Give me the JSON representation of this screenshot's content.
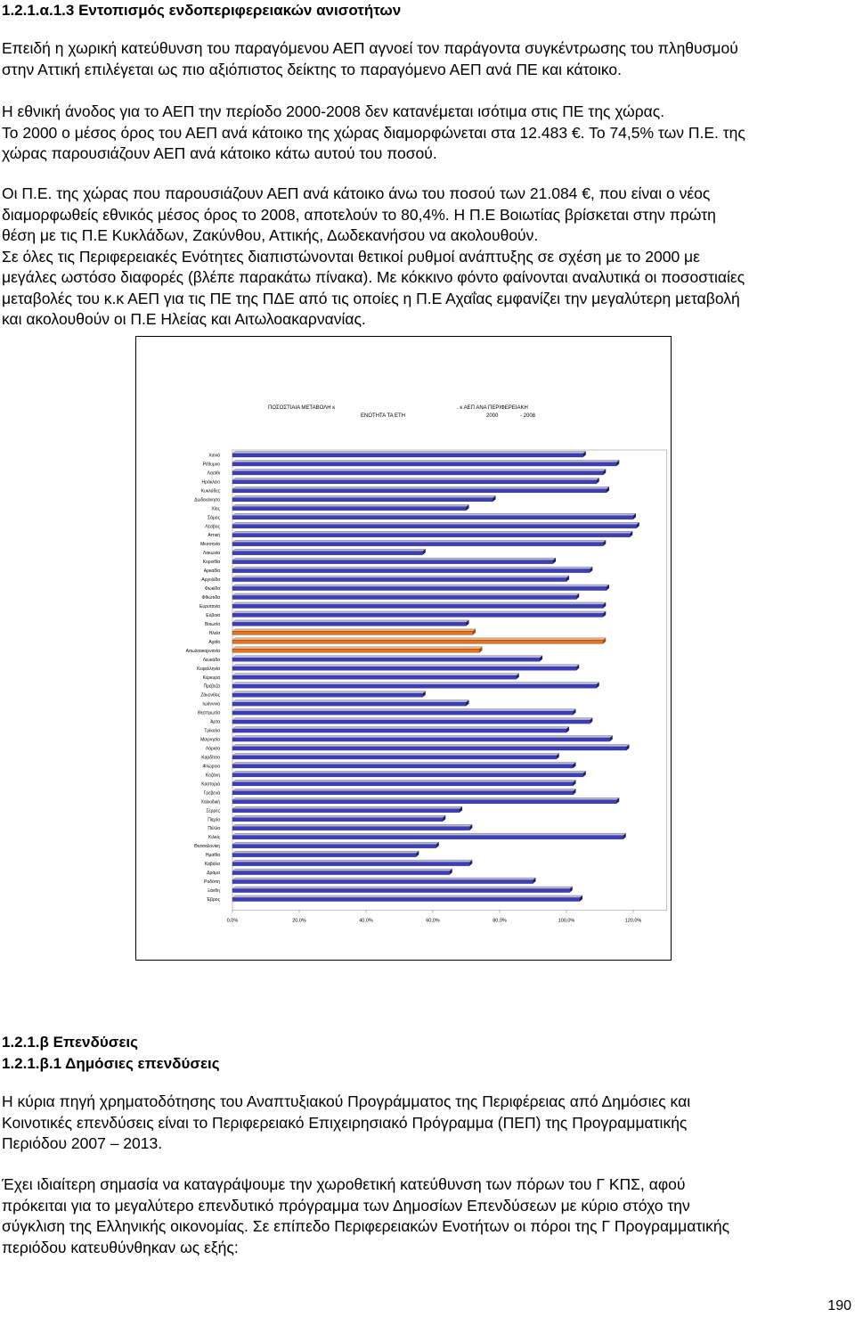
{
  "section_1": {
    "heading": "1.2.1.α.1.3 Εντοπισμός ενδοπεριφερειακών ανισοτήτων",
    "para_1": [
      "Επειδή η χωρική κατεύθυνση του παραγόμενου ΑΕΠ αγνοεί τον παράγοντα συγκέντρωσης του πληθυσμού",
      "στην Αττική επιλέγεται ως πιο αξιόπιστος δείκτης το παραγόμενο ΑΕΠ ανά ΠΕ και κάτοικο."
    ],
    "para_2": [
      "Η εθνική άνοδος για το ΑΕΠ την περίοδο 2000-2008 δεν κατανέμεται ισότιμα στις ΠΕ της χώρας.",
      "Το 2000 ο μέσος όρος του ΑΕΠ ανά κάτοικο της χώρας διαμορφώνεται στα 12.483 €. Το 74,5% των Π.Ε. της",
      "χώρας παρουσιάζουν ΑΕΠ ανά κάτοικο κάτω αυτού του ποσού."
    ],
    "para_3": [
      "Οι Π.Ε. της χώρας που παρουσιάζουν ΑΕΠ ανά κάτοικο άνω του ποσού των 21.084 €, που είναι ο νέος",
      "διαμορφωθείς εθνικός μέσος όρος το 2008, αποτελούν το 80,4%. Η Π.Ε Βοιωτίας βρίσκεται στην πρώτη",
      "θέση με τις Π.Ε Κυκλάδων, Ζακύνθου, Αττικής, Δωδεκανήσου να ακολουθούν.",
      "Σε όλες τις Περιφερειακές Ενότητες διαπιστώνονται θετικοί ρυθμοί ανάπτυξης σε σχέση με το 2000 με",
      "μεγάλες ωστόσο διαφορές (βλέπε παρακάτω πίνακα). Με κόκκινο φόντο φαίνονται αναλυτικά οι ποσοστιαίες",
      "μεταβολές του κ.κ ΑΕΠ για τις ΠΕ της ΠΔΕ από τις οποίες η Π.Ε Αχαΐας εμφανίζει την μεγαλύτερη μεταβολή",
      "και ακολουθούν οι Π.Ε Ηλείας και Αιτωλοακαρνανίας."
    ]
  },
  "chart_data": {
    "type": "bar",
    "orientation": "horizontal",
    "title_parts": [
      "ΠΟΣΟΣΤΙΑΙΑ ΜΕΤΑΒΟΛΗ κ",
      ". κ ΑΕΠ ΑΝΑ ΠΕΡΙΦΕΡΕΙΑΚΗ",
      "ΕΝΟΤΗΤΑ ΤΑ ΕΤΗ",
      "2000",
      "- 2008"
    ],
    "xlim": [
      0,
      130
    ],
    "x_ticks": [
      "0,0%",
      "20,0%",
      "40,0%",
      "60,0%",
      "80,0%",
      "100,0%",
      "120,0%"
    ],
    "x_tick_values": [
      0,
      20,
      40,
      60,
      80,
      100,
      120
    ],
    "bar_color": "#3d3dbf",
    "highlight_color": "#e8731a",
    "categories": [
      "Χανιά",
      "Ρέθυμνο",
      "Λασίθι",
      "Ηράκλειο",
      "Κυκλάδες",
      "Δωδεκάνησα",
      "Χίος",
      "Σάμος",
      "Λέσβος",
      "Αττική",
      "Μεσσηνία",
      "Λακωνία",
      "Κορινθία",
      "Αρκαδία",
      "Αργολίδα",
      "Φωκίδα",
      "Φθιώτιδα",
      "Ευρυτανία",
      "Εύβοια",
      "Βοιωτία",
      "Ηλεία",
      "Αχαΐα",
      "Αιτωλοακαρνανία",
      "Λευκάδα",
      "Κεφαλληνία",
      "Κέρκυρα",
      "Πρέβεζα",
      "Ζάκυνθος",
      "Ιωάννινα",
      "Θεσπρωτία",
      "Άρτα",
      "Τρίκαλα",
      "Μαγνησία",
      "Λάρισα",
      "Καρδίτσα",
      "Φλώρινα",
      "Κοζάνη",
      "Καστοριά",
      "Γρεβενά",
      "Χαλκιδική",
      "Σέρρες",
      "Πιερία",
      "Πέλλα",
      "Κιλκίς",
      "Θεσσαλονίκη",
      "Ημαθία",
      "Καβάλα",
      "Δράμα",
      "Ροδόπη",
      "Ξάνθη",
      "Έβρος"
    ],
    "values": [
      105,
      115,
      111,
      109,
      112,
      78,
      70,
      120,
      121,
      119,
      111,
      57,
      96,
      107,
      100,
      112,
      103,
      111,
      111,
      70,
      72,
      111,
      74,
      92,
      103,
      85,
      109,
      57,
      70,
      102,
      107,
      100,
      113,
      118,
      97,
      102,
      105,
      102,
      102,
      115,
      68,
      63,
      71,
      117,
      61,
      55,
      71,
      65,
      90,
      101,
      104
    ],
    "highlighted": [
      "Ηλεία",
      "Αχαΐα",
      "Αιτωλοακαρνανία"
    ]
  },
  "section_2": {
    "heading_1": "1.2.1.β Επενδύσεις",
    "heading_2": "1.2.1.β.1 Δημόσιες επενδύσεις",
    "para_1": [
      "Η κύρια πηγή χρηματοδότησης του Αναπτυξιακού Προγράμματος της Περιφέρειας από Δημόσιες και",
      "Κοινοτικές επενδύσεις είναι το Περιφερειακό Επιχειρησιακό Πρόγραμμα (ΠΕΠ) της Προγραμματικής",
      "Περιόδου 2007 – 2013."
    ],
    "para_2": [
      "Έχει ιδιαίτερη σημασία να καταγράψουμε την χωροθετική κατεύθυνση των πόρων του Γ ΚΠΣ, αφού",
      "πρόκειται για το μεγαλύτερο επενδυτικό πρόγραμμα των Δημοσίων Επενδύσεων με κύριο στόχο την",
      "σύγκλιση της Ελληνικής οικονομίας. Σε επίπεδο Περιφερειακών Ενοτήτων οι πόροι της Γ Προγραμματικής",
      "περιόδου κατευθύνθηκαν ως εξής:"
    ]
  },
  "page_number": "190"
}
